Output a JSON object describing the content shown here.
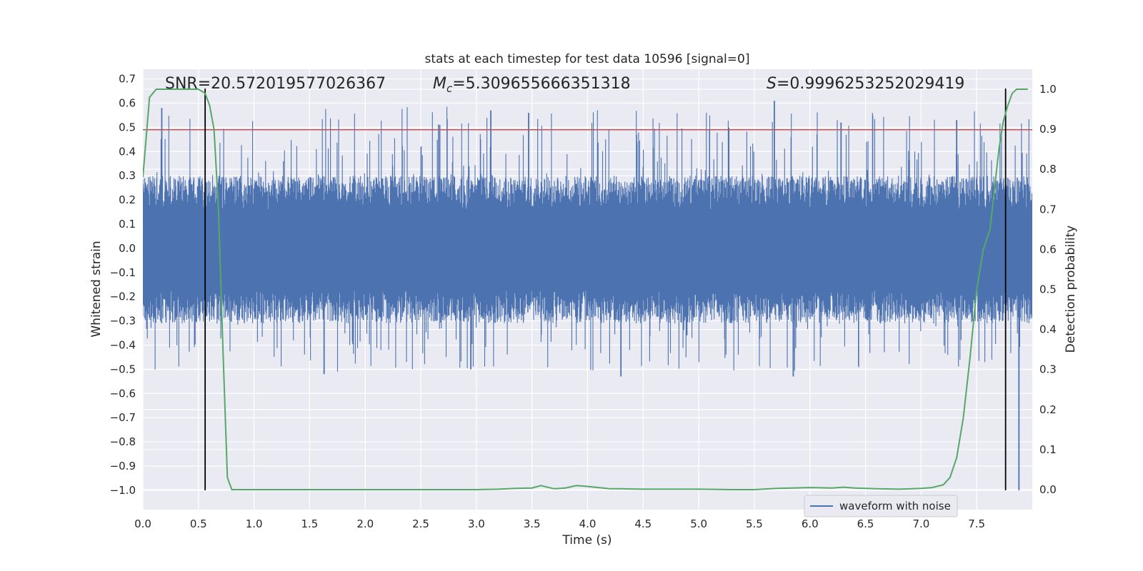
{
  "chart_data": {
    "type": "line",
    "title": "stats at each timestep for test data 10596 [signal=0]",
    "xlabel": "Time (s)",
    "ylabel": "Whitened strain",
    "y2label": "Detection probability",
    "xlim": [
      0.0,
      8.0
    ],
    "ylim": [
      -1.08,
      0.74
    ],
    "y2lim": [
      -0.05,
      1.05
    ],
    "xticks": [
      0.0,
      0.5,
      1.0,
      1.5,
      2.0,
      2.5,
      3.0,
      3.5,
      4.0,
      4.5,
      5.0,
      5.5,
      6.0,
      6.5,
      7.0,
      7.5
    ],
    "xtick_labels": [
      "0.0",
      "0.5",
      "1.0",
      "1.5",
      "2.0",
      "2.5",
      "3.0",
      "3.5",
      "4.0",
      "4.5",
      "5.0",
      "5.5",
      "6.0",
      "6.5",
      "7.0",
      "7.5"
    ],
    "yticks": [
      0.7,
      0.6,
      0.5,
      0.4,
      0.3,
      0.2,
      0.1,
      0.0,
      -0.1,
      -0.2,
      -0.3,
      -0.4,
      -0.5,
      -0.6,
      -0.7,
      -0.8,
      -0.9,
      -1.0
    ],
    "ytick_labels": [
      "0.7",
      "0.6",
      "0.5",
      "0.4",
      "0.3",
      "0.2",
      "0.1",
      "0.0",
      "−0.1",
      "−0.2",
      "−0.3",
      "−0.4",
      "−0.5",
      "−0.6",
      "−0.7",
      "−0.8",
      "−0.9",
      "−1.0"
    ],
    "y2ticks": [
      1.0,
      0.9,
      0.8,
      0.7,
      0.6,
      0.5,
      0.4,
      0.3,
      0.2,
      0.1,
      0.0
    ],
    "y2tick_labels": [
      "1.0",
      "0.9",
      "0.8",
      "0.7",
      "0.6",
      "0.5",
      "0.4",
      "0.3",
      "0.2",
      "0.1",
      "0.0"
    ],
    "annotations": {
      "snr": "SNR=20.572019577026367",
      "mc_symbol": "M",
      "mc_sub": "c",
      "mc_value": "=5.309655666351318",
      "s_symbol": "S",
      "s_value": "=0.9996253252029419"
    },
    "legend": {
      "label": "waveform with noise",
      "location": "lower-right"
    },
    "threshold_line": {
      "y": 0.49,
      "color": "#c44e52"
    },
    "vertical_markers": [
      {
        "x": 0.56,
        "ymin": -1.0,
        "ymax": 0.66
      },
      {
        "x": 7.76,
        "ymin": -1.0,
        "ymax": 0.66
      }
    ],
    "series": [
      {
        "name": "waveform with noise",
        "axis": "left",
        "color": "#4c72b0",
        "band": {
          "x_start": 0.0,
          "x_end": 8.0,
          "core_low": -0.17,
          "core_high": 0.16,
          "peak_max": 0.61,
          "trough_min": -0.53
        },
        "notable_spikes": [
          {
            "x": 0.17,
            "y": 0.58
          },
          {
            "x": 2.67,
            "y": 0.51
          },
          {
            "x": 3.13,
            "y": 0.57
          },
          {
            "x": 3.47,
            "y": 0.56
          },
          {
            "x": 5.68,
            "y": 0.61
          },
          {
            "x": 6.28,
            "y": 0.52
          },
          {
            "x": 7.32,
            "y": 0.53
          },
          {
            "x": 1.63,
            "y": -0.52
          },
          {
            "x": 2.95,
            "y": -0.5
          },
          {
            "x": 4.3,
            "y": -0.53
          },
          {
            "x": 5.85,
            "y": -0.53
          },
          {
            "x": 7.88,
            "y": -1.0
          }
        ]
      },
      {
        "name": "detection probability",
        "axis": "right",
        "color": "#55a868",
        "x": [
          0.0,
          0.06,
          0.12,
          0.2,
          0.3,
          0.4,
          0.5,
          0.56,
          0.6,
          0.64,
          0.68,
          0.72,
          0.76,
          0.8,
          0.85,
          0.9,
          1.0,
          1.5,
          2.0,
          2.5,
          3.0,
          3.2,
          3.35,
          3.5,
          3.58,
          3.7,
          3.8,
          3.9,
          4.0,
          4.1,
          4.2,
          4.3,
          4.5,
          5.0,
          5.3,
          5.5,
          5.7,
          6.0,
          6.2,
          6.3,
          6.4,
          6.6,
          6.8,
          7.0,
          7.1,
          7.2,
          7.26,
          7.32,
          7.38,
          7.44,
          7.5,
          7.56,
          7.62,
          7.66,
          7.7,
          7.74,
          7.78,
          7.82,
          7.86,
          7.9,
          7.96
        ],
        "values": [
          0.78,
          0.98,
          1.0,
          1.0,
          1.0,
          1.0,
          1.0,
          0.99,
          0.96,
          0.9,
          0.7,
          0.35,
          0.03,
          0.0,
          0.0,
          0.0,
          0.0,
          0.0,
          0.0,
          0.0,
          0.0,
          0.001,
          0.003,
          0.004,
          0.01,
          0.002,
          0.004,
          0.01,
          0.008,
          0.005,
          0.002,
          0.002,
          0.001,
          0.001,
          0.0,
          0.0,
          0.003,
          0.005,
          0.004,
          0.006,
          0.004,
          0.002,
          0.001,
          0.003,
          0.005,
          0.012,
          0.03,
          0.08,
          0.18,
          0.33,
          0.5,
          0.6,
          0.65,
          0.75,
          0.85,
          0.92,
          0.96,
          0.99,
          1.0,
          1.0,
          1.0
        ]
      }
    ]
  }
}
